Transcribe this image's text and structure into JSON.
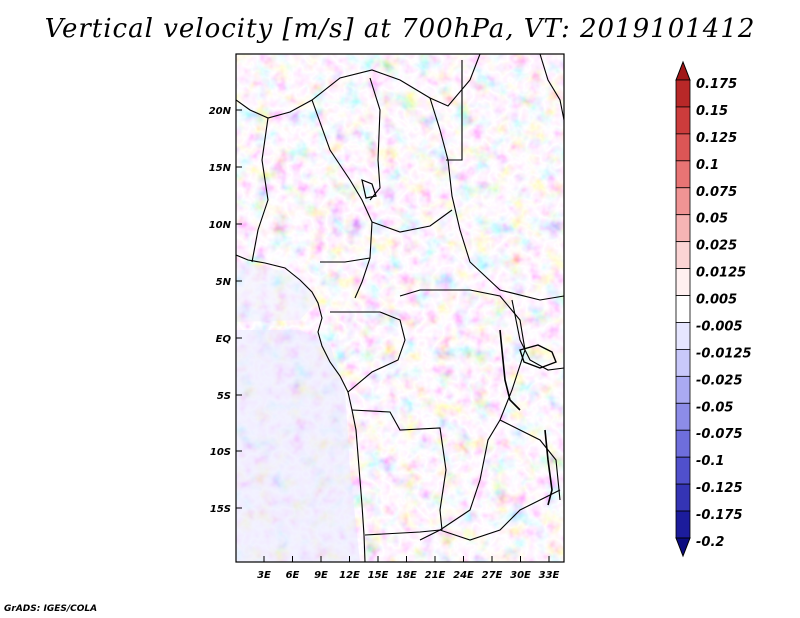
{
  "title": "Vertical velocity [m/s] at 700hPa, VT: 2019101412",
  "credit": "GrADS: IGES/COLA",
  "map": {
    "lat_ticks": [
      "20N",
      "15N",
      "10N",
      "5N",
      "EQ",
      "5S",
      "10S",
      "15S"
    ],
    "lon_ticks": [
      "3E",
      "6E",
      "9E",
      "12E",
      "15E",
      "18E",
      "21E",
      "24E",
      "27E",
      "30E",
      "33E"
    ]
  },
  "colorbar": {
    "labels": [
      "0.175",
      "0.15",
      "0.125",
      "0.1",
      "0.075",
      "0.05",
      "0.025",
      "0.0125",
      "0.005",
      "-0.005",
      "-0.0125",
      "-0.025",
      "-0.05",
      "-0.075",
      "-0.1",
      "-0.125",
      "-0.175",
      "-0.2"
    ],
    "colors": [
      "#a01818",
      "#b82828",
      "#cc3c3c",
      "#dc5656",
      "#e87474",
      "#f09494",
      "#f6b4b4",
      "#fbd4d4",
      "#fff0f0",
      "#ffffff",
      "#e6e6ff",
      "#c8c8fa",
      "#aaaaf2",
      "#8c8ce8",
      "#6e6edc",
      "#5050cc",
      "#3434b4",
      "#1c1c9c",
      "#0c0c80"
    ]
  }
}
